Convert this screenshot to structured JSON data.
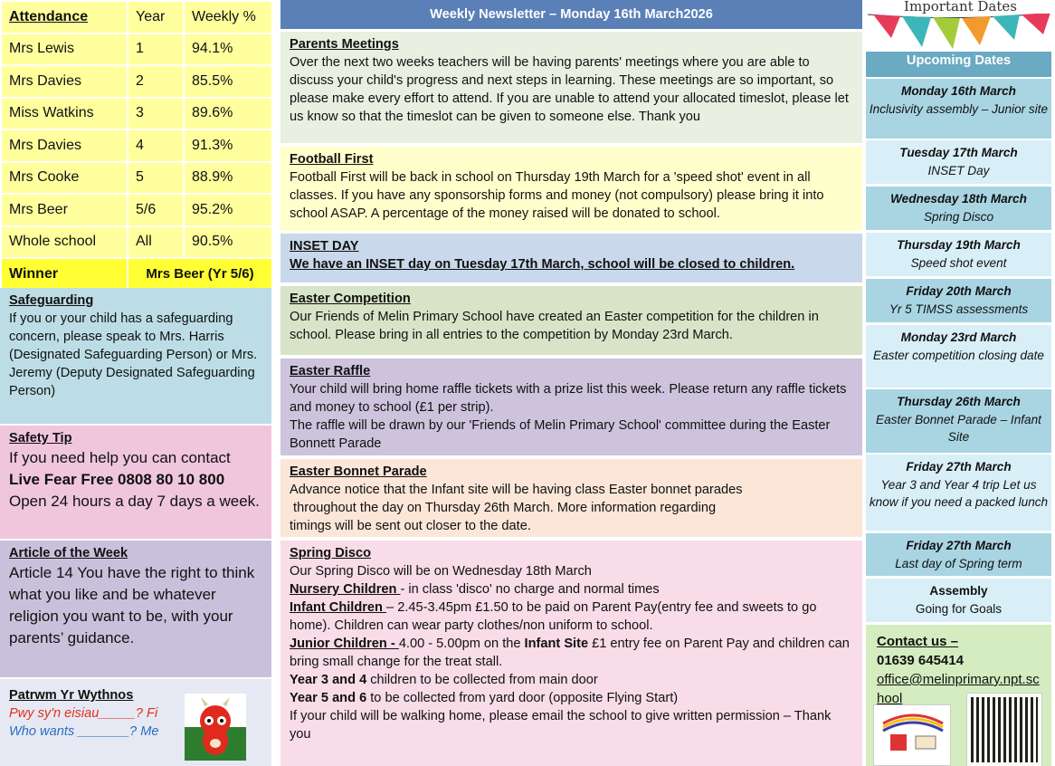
{
  "attendance": {
    "headers": [
      "Attendance",
      "Year",
      "Weekly %"
    ],
    "rows": [
      [
        "Mrs Lewis",
        "1",
        "94.1%"
      ],
      [
        "Mrs Davies",
        "2",
        "85.5%"
      ],
      [
        "Miss Watkins",
        "3",
        "89.6%"
      ],
      [
        "Mrs Davies",
        "4",
        "91.3%"
      ],
      [
        "Mrs Cooke",
        "5",
        "88.9%"
      ],
      [
        "Mrs Beer",
        "5/6",
        "95.2%"
      ],
      [
        "Whole school",
        "All",
        "90.5%"
      ]
    ],
    "winner_label": "Winner",
    "winner_value": "Mrs Beer (Yr 5/6)"
  },
  "safeguarding": {
    "title": "Safeguarding",
    "text": "If you or your child has a safeguarding concern, please speak to Mrs. Harris (Designated Safeguarding Person) or Mrs. Jeremy (Deputy Designated Safeguarding Person)"
  },
  "safety_tip": {
    "title": "Safety Tip",
    "line1": "If you need help you can contact",
    "line2": "Live Fear Free 0808 80 10 800",
    "line3": "Open 24 hours a day 7 days a week."
  },
  "article": {
    "title": "Article of the Week",
    "text": "Article 14 You have the right to think what you like and be whatever religion you want to be, with your parents’ guidance."
  },
  "patrwm": {
    "title": "Patrwm Yr Wythnos",
    "welsh": "Pwy sy'n eisiau_____? Fi",
    "english": "Who wants _______? Me"
  },
  "newsletter": {
    "header": "Weekly Newsletter – Monday 16th March2026",
    "parents": {
      "title": "Parents Meetings",
      "text": "Over the next two weeks teachers will be having parents' meetings where you are able to discuss your child's progress and next steps in learning. These meetings are so important, so please make every effort to attend. If you are unable to attend your allocated timeslot, please let us know so that the timeslot can be given to someone else. Thank you"
    },
    "football": {
      "title": "Football First",
      "text": "Football First will be back in school on Thursday 19th March for a 'speed shot' event in all classes. If you have any sponsorship forms and money (not compulsory) please bring it into school ASAP. A percentage of the money raised will be donated to school."
    },
    "inset": {
      "title": "INSET DAY",
      "text": "We have an INSET day on Tuesday 17th March, school will be closed to children."
    },
    "easter_comp": {
      "title": "Easter Competition",
      "text": "Our Friends of Melin Primary School have created an Easter competition for the children in school. Please bring in all entries to the competition by Monday 23rd March."
    },
    "raffle": {
      "title": "Easter Raffle",
      "text1": "Your child will bring home raffle tickets with a prize list this week. Please return any raffle tickets and money to school (£1 per strip).",
      "text2": "The raffle will be drawn by our 'Friends of Melin Primary School' committee during the Easter Bonnett Parade"
    },
    "bonnet": {
      "title": "Easter Bonnet Parade",
      "line1": "Advance notice that the Infant site will be having class Easter bonnet parades",
      "line2": " throughout the day on Thursday 26th March. More information regarding",
      "line3": "timings will be sent out closer to the date."
    },
    "disco": {
      "title": "Spring Disco",
      "intro": "Our Spring Disco will be  on Wednesday 18th March",
      "nursery_label": "Nursery Children ",
      "nursery_text": " - in class 'disco' no charge and normal times",
      "infant_label": "Infant Children ",
      "infant_text": "– 2.45-3.45pm £1.50 to be paid on Parent Pay(entry fee and sweets to go home). Children can wear party clothes/non uniform to school.",
      "junior_label": "Junior Children - ",
      "junior_text1": "4.00 - 5.00pm on the ",
      "junior_site": "Infant Site",
      "junior_text2": "  £1 entry fee on Parent Pay and children can bring small change for the treat stall.",
      "y34_label": "Year 3 and 4",
      "y34_text": " children to be collected from main door",
      "y56_label": "Year 5 and 6",
      "y56_text": " to be collected from yard door (opposite Flying Start)",
      "walking": "If your child will be walking home, please email the school to give written permission – Thank you"
    }
  },
  "dates": {
    "banner": "Important Dates",
    "header": "Upcoming Dates",
    "items": [
      {
        "day": "Monday 16th March",
        "desc": "Inclusivity assembly – Junior site"
      },
      {
        "day": "Tuesday 17th March",
        "desc": "INSET Day"
      },
      {
        "day": "Wednesday 18th March",
        "desc": "Spring Disco"
      },
      {
        "day": "Thursday 19th March",
        "desc": "Speed shot event"
      },
      {
        "day": "Friday 20th March",
        "desc": "Yr 5 TIMSS assessments"
      },
      {
        "day": "Monday 23rd March",
        "desc": "Easter competition closing date"
      },
      {
        "day": "Thursday 26th March",
        "desc": "Easter Bonnet Parade – Infant Site"
      },
      {
        "day": "Friday 27th March",
        "desc": "Year 3 and Year 4 trip Let us know if you need a packed lunch"
      },
      {
        "day": "Friday 27th March",
        "desc": "Last day of Spring term"
      },
      {
        "day": "Assembly",
        "desc": "Going for Goals"
      }
    ]
  },
  "contact": {
    "title": "Contact us –",
    "phone": "01639 645414",
    "email": "office@melinprimary.npt.school"
  },
  "colors": {
    "header_blue": "#5b80b8",
    "winner_yellow": "#ffff33",
    "dates_header": "#6aaac3"
  }
}
